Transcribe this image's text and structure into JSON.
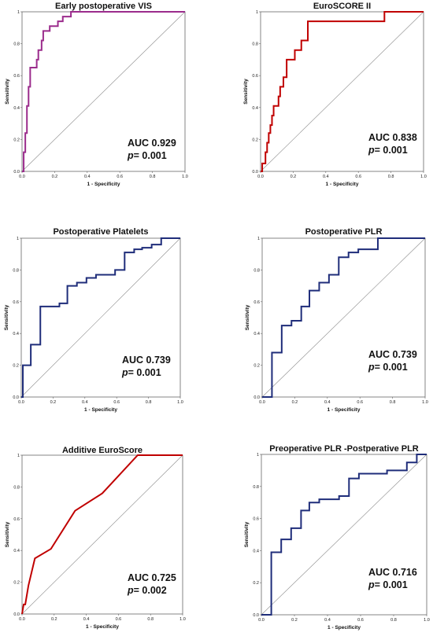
{
  "chart_data": [
    {
      "type": "line",
      "title": "Early postoperative VIS",
      "xlabel": "1 - Specificity",
      "ylabel": "Sensitivity",
      "xlim": [
        0,
        1
      ],
      "ylim": [
        0,
        1
      ],
      "xticks": [
        "0.0",
        "0.2",
        "0.4",
        "0.6",
        "0.8",
        "1.0"
      ],
      "yticks": [
        "0.0",
        "0.2",
        "0.4",
        "0.6",
        "0.8",
        "1"
      ],
      "color": "#9b2c8c",
      "roc": {
        "x": [
          0,
          0.01,
          0.01,
          0.02,
          0.02,
          0.03,
          0.03,
          0.04,
          0.04,
          0.05,
          0.05,
          0.09,
          0.09,
          0.1,
          0.1,
          0.12,
          0.12,
          0.13,
          0.13,
          0.17,
          0.17,
          0.22,
          0.22,
          0.25,
          0.25,
          0.3,
          0.3,
          1.0
        ],
        "y": [
          0,
          0,
          0.12,
          0.12,
          0.24,
          0.24,
          0.41,
          0.41,
          0.53,
          0.53,
          0.65,
          0.65,
          0.7,
          0.7,
          0.76,
          0.76,
          0.82,
          0.82,
          0.88,
          0.88,
          0.91,
          0.91,
          0.94,
          0.94,
          0.97,
          0.97,
          1.0,
          1.0
        ]
      },
      "auc_label": "AUC 0.929",
      "p_prefix": "p",
      "p_value": "= 0.001"
    },
    {
      "type": "line",
      "title": "EuroSCORE II",
      "xlabel": "1 - Specificity",
      "ylabel": "Sensitivity",
      "xlim": [
        0,
        1
      ],
      "ylim": [
        0,
        1
      ],
      "xticks": [
        "0.0",
        "0.2",
        "0.4",
        "0.6",
        "0.8",
        "1.0"
      ],
      "yticks": [
        "0.0",
        "0.2",
        "0.4",
        "0.6",
        "0.8",
        "1"
      ],
      "color": "#c00000",
      "roc": {
        "x": [
          0,
          0.01,
          0.01,
          0.03,
          0.03,
          0.04,
          0.04,
          0.05,
          0.05,
          0.06,
          0.06,
          0.07,
          0.07,
          0.08,
          0.08,
          0.11,
          0.11,
          0.12,
          0.12,
          0.14,
          0.14,
          0.16,
          0.16,
          0.21,
          0.21,
          0.25,
          0.25,
          0.29,
          0.29,
          0.76,
          0.76,
          1.0
        ],
        "y": [
          0,
          0,
          0.05,
          0.05,
          0.12,
          0.12,
          0.18,
          0.18,
          0.24,
          0.24,
          0.29,
          0.29,
          0.35,
          0.35,
          0.41,
          0.41,
          0.47,
          0.47,
          0.53,
          0.53,
          0.59,
          0.59,
          0.7,
          0.7,
          0.76,
          0.76,
          0.82,
          0.82,
          0.94,
          0.94,
          1.0,
          1.0
        ]
      },
      "auc_label": "AUC 0.838",
      "p_prefix": "p",
      "p_value": "= 0.001"
    },
    {
      "type": "line",
      "title": "Postoperative Platelets",
      "xlabel": "1 - Specificity",
      "ylabel": "Sensitivity",
      "xlim": [
        0,
        1
      ],
      "ylim": [
        0,
        1
      ],
      "xticks": [
        "0.0",
        "0.2",
        "0.4",
        "0.6",
        "0.8",
        "1.0"
      ],
      "yticks": [
        "0.0",
        "0.2",
        "0.4",
        "0.6",
        "0.8",
        "1"
      ],
      "color": "#1f2d7a",
      "roc": {
        "x": [
          0,
          0.01,
          0.01,
          0.06,
          0.06,
          0.12,
          0.12,
          0.24,
          0.24,
          0.29,
          0.29,
          0.35,
          0.35,
          0.41,
          0.41,
          0.47,
          0.47,
          0.59,
          0.59,
          0.65,
          0.65,
          0.71,
          0.71,
          0.76,
          0.76,
          0.82,
          0.82,
          0.88,
          0.88,
          1.0
        ],
        "y": [
          0,
          0,
          0.2,
          0.2,
          0.33,
          0.33,
          0.57,
          0.57,
          0.59,
          0.59,
          0.7,
          0.7,
          0.72,
          0.72,
          0.75,
          0.75,
          0.77,
          0.77,
          0.8,
          0.8,
          0.91,
          0.91,
          0.93,
          0.93,
          0.94,
          0.94,
          0.96,
          0.96,
          1.0,
          1.0
        ]
      },
      "auc_label": "AUC 0.739",
      "p_prefix": "p",
      "p_value": "= 0.001"
    },
    {
      "type": "line",
      "title": "Postoperative PLR",
      "xlabel": "1 - Specificity",
      "ylabel": "Sensitivity",
      "xlim": [
        0,
        1
      ],
      "ylim": [
        0,
        1
      ],
      "xticks": [
        "0.0",
        "0.2",
        "0.4",
        "0.6",
        "0.8",
        "1.0"
      ],
      "yticks": [
        "0.0",
        "0.2",
        "0.4",
        "0.6",
        "0.8",
        "1"
      ],
      "color": "#1f2d7a",
      "roc": {
        "x": [
          0,
          0.06,
          0.06,
          0.12,
          0.12,
          0.18,
          0.18,
          0.24,
          0.24,
          0.29,
          0.29,
          0.35,
          0.35,
          0.41,
          0.41,
          0.47,
          0.47,
          0.53,
          0.53,
          0.59,
          0.59,
          0.71,
          0.71,
          1.0
        ],
        "y": [
          0,
          0,
          0.28,
          0.28,
          0.45,
          0.45,
          0.48,
          0.48,
          0.57,
          0.57,
          0.67,
          0.67,
          0.72,
          0.72,
          0.77,
          0.77,
          0.88,
          0.88,
          0.91,
          0.91,
          0.93,
          0.93,
          1.0,
          1.0
        ]
      },
      "auc_label": "AUC 0.739",
      "p_prefix": "p",
      "p_value": "= 0.001"
    },
    {
      "type": "line",
      "title": "Additive EuroScore",
      "xlabel": "1 - Specificity",
      "ylabel": "Sensitivity",
      "xlim": [
        0,
        1
      ],
      "ylim": [
        0,
        1
      ],
      "xticks": [
        "0.0",
        "0.2",
        "0.4",
        "0.6",
        "0.8",
        "1.0"
      ],
      "yticks": [
        "0.0",
        "0.2",
        "0.4",
        "0.6",
        "0.8",
        "1"
      ],
      "color": "#c00000",
      "roc": {
        "x": [
          0,
          0.01,
          0.02,
          0.04,
          0.08,
          0.18,
          0.33,
          0.5,
          0.72,
          1.0
        ],
        "y": [
          0,
          0.06,
          0.06,
          0.18,
          0.35,
          0.41,
          0.65,
          0.76,
          1.0,
          1.0
        ]
      },
      "auc_label": "AUC 0.725",
      "p_prefix": "p",
      "p_value": "= 0.002"
    },
    {
      "type": "line",
      "title": "Preoperative PLR -Postperative PLR",
      "xlabel": "1 - Specificity",
      "ylabel": "Sensitivity",
      "xlim": [
        0,
        1
      ],
      "ylim": [
        0,
        1
      ],
      "xticks": [
        "0.0",
        "0.2",
        "0.4",
        "0.6",
        "0.8",
        "1.0"
      ],
      "yticks": [
        "0.0",
        "0.2",
        "0.4",
        "0.6",
        "0.8",
        "1"
      ],
      "color": "#1f2d7a",
      "roc": {
        "x": [
          0,
          0.06,
          0.06,
          0.12,
          0.12,
          0.18,
          0.18,
          0.24,
          0.24,
          0.29,
          0.29,
          0.35,
          0.35,
          0.47,
          0.47,
          0.53,
          0.53,
          0.59,
          0.59,
          0.76,
          0.76,
          0.88,
          0.88,
          0.94,
          0.94,
          1.0
        ],
        "y": [
          0,
          0,
          0.39,
          0.39,
          0.47,
          0.47,
          0.54,
          0.54,
          0.65,
          0.65,
          0.7,
          0.7,
          0.72,
          0.72,
          0.74,
          0.74,
          0.85,
          0.85,
          0.88,
          0.88,
          0.9,
          0.9,
          0.95,
          0.95,
          1.0,
          1.0
        ]
      },
      "auc_label": "AUC 0.716",
      "p_prefix": "p",
      "p_value": "= 0.001"
    }
  ]
}
